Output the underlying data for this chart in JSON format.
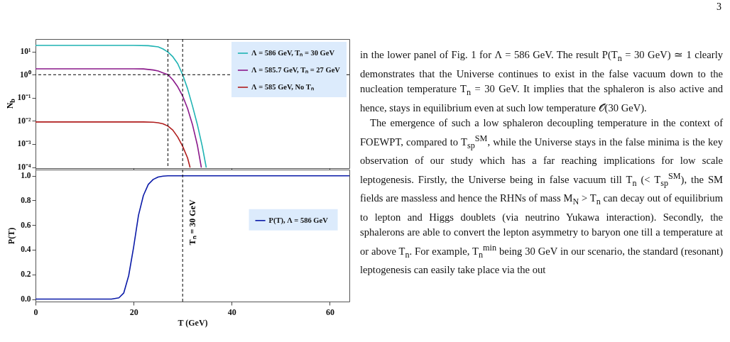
{
  "chart_data": [
    {
      "type": "line",
      "ylabel": "N$_{b}$",
      "log": "y",
      "xlim": [
        0,
        64
      ],
      "xticks": [
        0,
        20,
        40,
        60
      ],
      "ylim": [
        9e-05,
        35
      ],
      "tick_labels": "y",
      "grid": false,
      "legend": "top right",
      "line_style": "solid",
      "yticks": [
        {
          "value": 0.0001,
          "label": "10⁻⁴"
        },
        {
          "value": 0.001,
          "label": "10⁻³"
        },
        {
          "value": 0.01,
          "label": "10⁻²"
        },
        {
          "value": 0.1,
          "label": "10⁻¹"
        },
        {
          "value": 1,
          "label": "10⁰"
        },
        {
          "value": 10,
          "label": "10¹"
        }
      ],
      "series": [
        {
          "name": "Λ = 586 GeV,    Tₙ = 30 GeV",
          "color": "#1fb3b3",
          "x": [
            0,
            20,
            23,
            25,
            26,
            27,
            28,
            29,
            30,
            31,
            32,
            33,
            34,
            34.8
          ],
          "values": [
            18.5,
            18.5,
            18,
            16,
            13,
            9.5,
            6,
            3,
            1,
            0.25,
            0.045,
            0.007,
            0.0008,
            0.0001
          ]
        },
        {
          "name": "Λ = 585.7 GeV, Tₙ = 27 GeV",
          "color": "#8b1a8b",
          "x": [
            0,
            20,
            22,
            24,
            25,
            26,
            27,
            28,
            29,
            30,
            31,
            32,
            33,
            33.8
          ],
          "values": [
            1.8,
            1.8,
            1.78,
            1.6,
            1.45,
            1.2,
            1,
            0.6,
            0.3,
            0.12,
            0.035,
            0.007,
            0.0009,
            0.0001
          ]
        },
        {
          "name": "Λ = 585 GeV,    No Tₙ",
          "color": "#b01c1c",
          "x": [
            0,
            22,
            24,
            25,
            26,
            27,
            28,
            29,
            30,
            31,
            31.5
          ],
          "values": [
            0.009,
            0.009,
            0.0088,
            0.0083,
            0.0075,
            0.006,
            0.004,
            0.002,
            0.0008,
            0.00025,
            0.0001
          ]
        }
      ],
      "ref_lines": [
        {
          "axis": "x",
          "value": 27,
          "color": "#000000",
          "line_style": "dashed"
        },
        {
          "axis": "x",
          "value": 30,
          "color": "#000000",
          "line_style": "dashed"
        },
        {
          "axis": "y",
          "value": 1,
          "color": "#000000",
          "line_style": "dashed"
        }
      ]
    },
    {
      "type": "line",
      "xlabel": "T (GeV)",
      "ylabel": "P(T)",
      "xlim": [
        0,
        64
      ],
      "xticks": [
        0,
        20,
        40,
        60
      ],
      "ylim": [
        -0.02,
        1.05
      ],
      "grid": false,
      "legend": "right",
      "line_style": "solid",
      "yticks": [
        {
          "value": 0,
          "label": "0.0"
        },
        {
          "value": 0.2,
          "label": "0.2"
        },
        {
          "value": 0.4,
          "label": "0.4"
        },
        {
          "value": 0.6,
          "label": "0.6"
        },
        {
          "value": 0.8,
          "label": "0.8"
        },
        {
          "value": 1,
          "label": "1.0"
        }
      ],
      "series": [
        {
          "name": "P(T),   Λ = 586 GeV",
          "color": "#0a1aa8",
          "x": [
            0,
            15.5,
            17,
            18,
            19,
            20,
            21,
            22,
            23,
            24,
            25,
            26,
            27,
            30,
            64
          ],
          "values": [
            0,
            0,
            0.01,
            0.05,
            0.19,
            0.42,
            0.68,
            0.84,
            0.93,
            0.97,
            0.99,
            0.997,
            1,
            1,
            1
          ]
        }
      ],
      "ref_lines": [
        {
          "axis": "x",
          "value": 30,
          "color": "#000000",
          "line_style": "dashed",
          "label": "Tₙ = 30 GeV"
        }
      ]
    },
    {
      "type": "other",
      "annotations": [
        "3",
        "in the lower panel of Fig. 1 for Λ = 586 GeV. The result P(T$_{n}$ = 30 GeV) ≃ 1 clearly demonstrates that the Universe continues to exist in the false vacuum down to the nucleation temperature T$_{n}$ = 30 GeV. It implies that the sphaleron is also active and hence, stays in equilibrium even at such low temperature 𝒪(30 GeV).",
        "The emergence of such a low sphaleron decoupling temperature in the context of FOEWPT, compared to T$_{sp}$$^{SM}$, while the Universe stays in the false minima is the key observation of our study which has a far reaching implications for low scale leptogenesis. Firstly, the Universe being in false vacuum till T$_{n}$ (< T$_{sp}$$^{SM}$), the SM fields are massless and hence the RHNs of mass M$_{N}$ > T$_{n}$ can decay out of equilibrium to lepton and Higgs doublets (via neutrino Yukawa interaction). Secondly, the sphalerons are able to convert the lepton asymmetry to baryon one till a temperature at or above T$_{n}$. For example, T$_{n}$$^{min}$ being 30 GeV in our scenario, the standard (resonant) leptogenesis can easily take place via the out"
      ]
    }
  ]
}
